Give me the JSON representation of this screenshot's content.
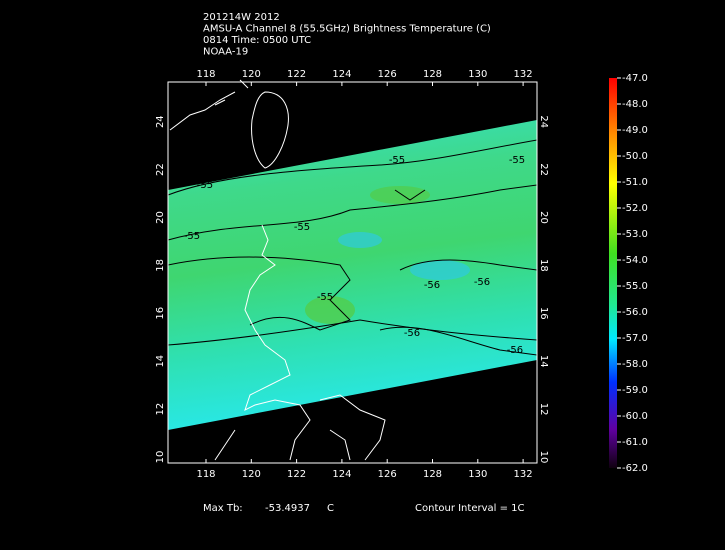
{
  "header": {
    "lines": [
      "201214W 2012",
      "AMSU-A Channel 8 (55.5GHz) Brightness Temperature (C)",
      "0814 Time: 0500 UTC",
      "NOAA-19"
    ]
  },
  "map": {
    "top_lon_labels": [
      "118",
      "120",
      "122",
      "124",
      "126",
      "128",
      "130",
      "132"
    ],
    "bottom_lon_labels": [
      "118",
      "120",
      "122",
      "124",
      "126",
      "128",
      "130",
      "132"
    ],
    "left_lat_labels": [
      "10",
      "12",
      "14",
      "16",
      "18",
      "20",
      "22",
      "24"
    ],
    "right_lat_labels": [
      "10",
      "12",
      "14",
      "16",
      "18",
      "20",
      "22",
      "24"
    ],
    "contour_labels": [
      "-55",
      "-55",
      "-55",
      "-55",
      "-55",
      "-55",
      "-56",
      "-56",
      "-56",
      "-56"
    ]
  },
  "colorbar": {
    "labels": [
      "-47.0",
      "-48.0",
      "-49.0",
      "-50.0",
      "-51.0",
      "-52.0",
      "-53.0",
      "-54.0",
      "-55.0",
      "-56.0",
      "-57.0",
      "-58.0",
      "-59.0",
      "-60.0",
      "-61.0",
      "-62.0"
    ]
  },
  "footer": {
    "max_tb_label": "Max Tb:",
    "max_tb_value": "-53.4937",
    "max_tb_unit": "C",
    "contour_interval": "Contour Interval = 1C"
  }
}
